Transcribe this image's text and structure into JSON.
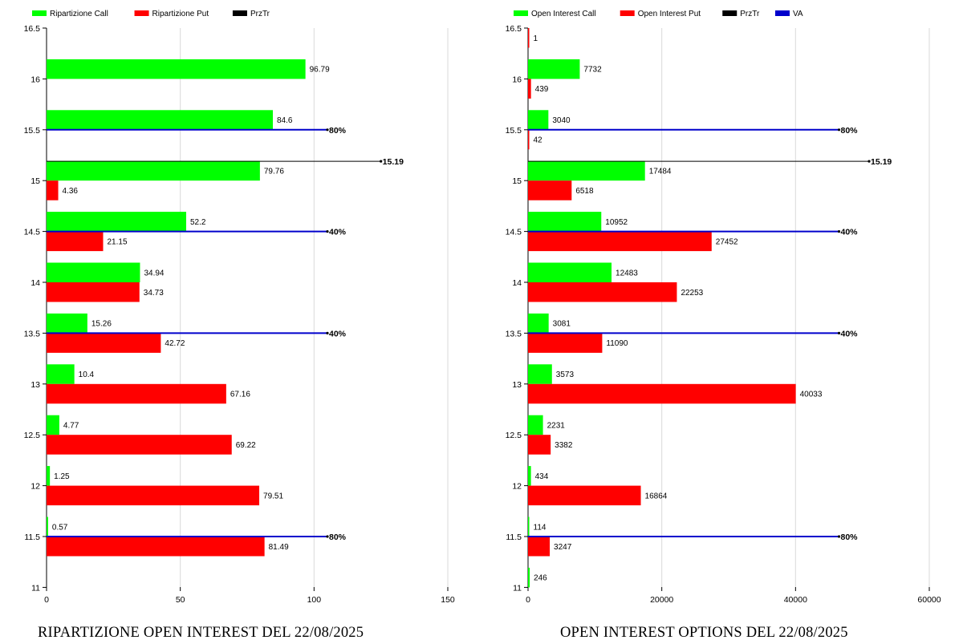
{
  "chart_data": [
    {
      "type": "bar",
      "orientation": "horizontal",
      "legend_position": "top-left",
      "grid": true,
      "legend": [
        {
          "name": "Ripartizione Call",
          "color": "#00ff00"
        },
        {
          "name": "Ripartizione Put",
          "color": "#ff0000"
        },
        {
          "name": "PrzTr",
          "color": "#000000"
        }
      ],
      "categories": [
        "11",
        "11.5",
        "12",
        "12.5",
        "13",
        "13.5",
        "14",
        "14.5",
        "15",
        "15.5",
        "16",
        "16.5"
      ],
      "series": [
        {
          "name": "Ripartizione Call",
          "color": "#00ff00",
          "values": [
            null,
            0.57,
            1.25,
            4.77,
            10.4,
            15.26,
            34.94,
            52.2,
            79.76,
            84.6,
            96.79,
            null
          ]
        },
        {
          "name": "Ripartizione Put",
          "color": "#ff0000",
          "values": [
            null,
            81.49,
            79.51,
            69.22,
            67.16,
            42.72,
            34.73,
            21.15,
            4.36,
            null,
            null,
            null
          ]
        }
      ],
      "xlim": [
        0,
        150
      ],
      "xticks": [
        "0",
        "50",
        "100",
        "150"
      ],
      "reference_lines": [
        {
          "name": "PrzTr",
          "strike": 15.19,
          "label": "15.19",
          "color": "#000000",
          "end": 125
        },
        {
          "name": "VA",
          "strike": 15.5,
          "label": "80%",
          "color": "#0000cc",
          "end": 105
        },
        {
          "name": "VA",
          "strike": 14.5,
          "label": "40%",
          "color": "#0000cc",
          "end": 105
        },
        {
          "name": "VA",
          "strike": 13.5,
          "label": "40%",
          "color": "#0000cc",
          "end": 105
        },
        {
          "name": "VA",
          "strike": 11.5,
          "label": "80%",
          "color": "#0000cc",
          "end": 105
        }
      ],
      "caption": "RIPARTIZIONE OPEN INTEREST DEL 22/08/2025"
    },
    {
      "type": "bar",
      "orientation": "horizontal",
      "legend_position": "top-left",
      "grid": true,
      "legend": [
        {
          "name": "Open Interest Call",
          "color": "#00ff00"
        },
        {
          "name": "Open Interest Put",
          "color": "#ff0000"
        },
        {
          "name": "PrzTr",
          "color": "#000000"
        },
        {
          "name": "VA",
          "color": "#0000cc"
        }
      ],
      "categories": [
        "11",
        "11.5",
        "12",
        "12.5",
        "13",
        "13.5",
        "14",
        "14.5",
        "15",
        "15.5",
        "16",
        "16.5"
      ],
      "series": [
        {
          "name": "Open Interest Call",
          "color": "#00ff00",
          "values": [
            246,
            114,
            434,
            2231,
            3573,
            3081,
            12483,
            10952,
            17484,
            3040,
            7732,
            null
          ]
        },
        {
          "name": "Open Interest Put",
          "color": "#ff0000",
          "values": [
            null,
            3247,
            16864,
            3382,
            40033,
            11090,
            22253,
            27452,
            6518,
            42,
            439,
            1
          ]
        }
      ],
      "xlim": [
        0,
        60000
      ],
      "xticks": [
        "0",
        "20000",
        "40000",
        "60000"
      ],
      "reference_lines": [
        {
          "name": "PrzTr",
          "strike": 15.19,
          "label": "15.19",
          "color": "#000000",
          "end": 51000
        },
        {
          "name": "VA",
          "strike": 15.5,
          "label": "80%",
          "color": "#0000cc",
          "end": 46500
        },
        {
          "name": "VA",
          "strike": 14.5,
          "label": "40%",
          "color": "#0000cc",
          "end": 46500
        },
        {
          "name": "VA",
          "strike": 13.5,
          "label": "40%",
          "color": "#0000cc",
          "end": 46500
        },
        {
          "name": "VA",
          "strike": 11.5,
          "label": "80%",
          "color": "#0000cc",
          "end": 46500
        }
      ],
      "caption": "OPEN INTEREST OPTIONS DEL 22/08/2025"
    }
  ]
}
